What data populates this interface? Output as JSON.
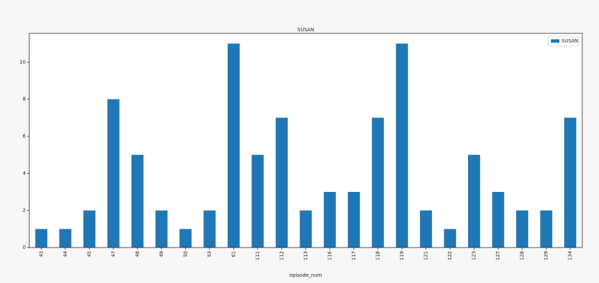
{
  "chart_data": {
    "type": "bar",
    "title": "SUSAN",
    "x_label": "episode_num",
    "categories": [
      "43",
      "44",
      "45",
      "47",
      "48",
      "49",
      "50",
      "53",
      "61",
      "111",
      "112",
      "113",
      "116",
      "117",
      "118",
      "119",
      "121",
      "122",
      "123",
      "127",
      "128",
      "129",
      "134"
    ],
    "series": [
      {
        "name": "SUSAN",
        "color": "#1f77b4",
        "values": [
          1,
          1,
          2,
          8,
          5,
          2,
          1,
          2,
          11,
          5,
          7,
          2,
          3,
          3,
          7,
          11,
          2,
          1,
          5,
          3,
          2,
          2,
          7
        ]
      }
    ],
    "ylim": [
      0,
      11.55
    ],
    "yticks": [
      0,
      2,
      4,
      6,
      8,
      10
    ],
    "legend": "upper right"
  }
}
